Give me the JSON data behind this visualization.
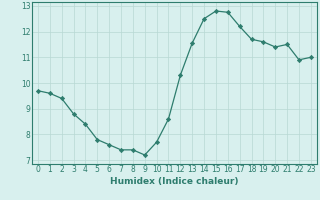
{
  "x": [
    0,
    1,
    2,
    3,
    4,
    5,
    6,
    7,
    8,
    9,
    10,
    11,
    12,
    13,
    14,
    15,
    16,
    17,
    18,
    19,
    20,
    21,
    22,
    23
  ],
  "y": [
    9.7,
    9.6,
    9.4,
    8.8,
    8.4,
    7.8,
    7.6,
    7.4,
    7.4,
    7.2,
    7.7,
    8.6,
    10.3,
    11.55,
    12.5,
    12.8,
    12.75,
    12.2,
    11.7,
    11.6,
    11.4,
    11.5,
    10.9,
    11.0
  ],
  "line_color": "#2e7d6e",
  "marker": "D",
  "marker_size": 2.2,
  "bg_color": "#d8f0ee",
  "grid_color": "#b8d8d4",
  "xlabel": "Humidex (Indice chaleur)",
  "xlim": [
    -0.5,
    23.5
  ],
  "ylim": [
    6.85,
    13.15
  ],
  "yticks": [
    7,
    8,
    9,
    10,
    11,
    12,
    13
  ],
  "xticks": [
    0,
    1,
    2,
    3,
    4,
    5,
    6,
    7,
    8,
    9,
    10,
    11,
    12,
    13,
    14,
    15,
    16,
    17,
    18,
    19,
    20,
    21,
    22,
    23
  ],
  "tick_fontsize": 5.5,
  "xlabel_fontsize": 6.5
}
